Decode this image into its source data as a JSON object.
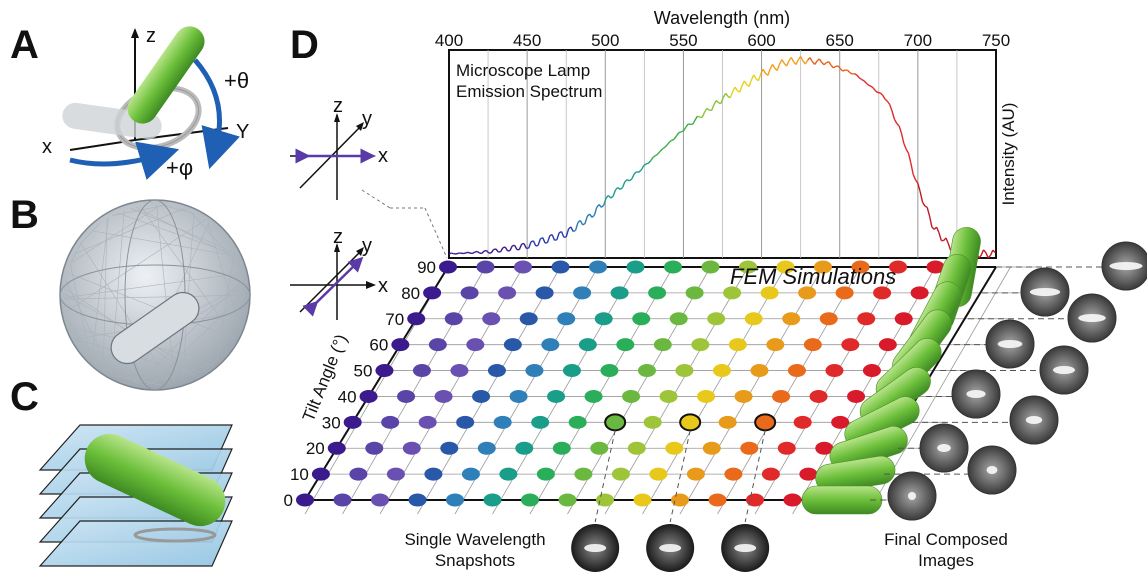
{
  "panels": {
    "a": "A",
    "b": "B",
    "c": "C",
    "d": "D"
  },
  "panel_a": {
    "z": "z",
    "x": "x",
    "y": "Y",
    "theta": "+θ",
    "phi": "+φ"
  },
  "axes_small": {
    "z": "z",
    "y": "y",
    "x": "x"
  },
  "chart_data": {
    "type": "line",
    "title": "Microscope Lamp Emission Spectrum",
    "title_line1": "Microscope Lamp",
    "title_line2": "Emission Spectrum",
    "xlabel": "Wavelength (nm)",
    "ylabel": "Intensity (AU)",
    "xlim": [
      400,
      750
    ],
    "xticks": [
      "400",
      "450",
      "500",
      "550",
      "600",
      "650",
      "700",
      "750"
    ],
    "x": [
      400,
      425,
      450,
      475,
      490,
      500,
      525,
      550,
      575,
      600,
      615,
      625,
      640,
      660,
      680,
      690,
      700,
      710,
      720,
      730,
      740,
      750
    ],
    "y": [
      0.02,
      0.03,
      0.06,
      0.12,
      0.2,
      0.28,
      0.45,
      0.63,
      0.78,
      0.9,
      0.96,
      0.97,
      0.96,
      0.9,
      0.78,
      0.6,
      0.35,
      0.15,
      0.06,
      0.03,
      0.02,
      0.02
    ],
    "grid": true
  },
  "grid": {
    "title": "FEM Simulations",
    "ylabel": "Tilt Angle (°)",
    "tilt_ticks": [
      "90",
      "80",
      "70",
      "60",
      "50",
      "40",
      "30",
      "20",
      "10",
      "0"
    ],
    "columns": 16,
    "colors": [
      "#3a1a8c",
      "#5b44a8",
      "#6a50b0",
      "#2a58a8",
      "#2f7fb8",
      "#1a9e8a",
      "#2aae5a",
      "#6ab840",
      "#9ec43a",
      "#e8c81a",
      "#e89a1a",
      "#e86a1a",
      "#e02a2a",
      "#d81a2a",
      "#c8202a",
      "#a01822"
    ]
  },
  "captions": {
    "snapshots_line1": "Single Wavelength",
    "snapshots_line2": "Snapshots",
    "composed_line1": "Final Composed",
    "composed_line2": "Images"
  },
  "colors": {
    "arrow_blue": "#1f5fb4",
    "rod_green": "#5aaa32",
    "axis_purple": "#5a3aa8"
  }
}
